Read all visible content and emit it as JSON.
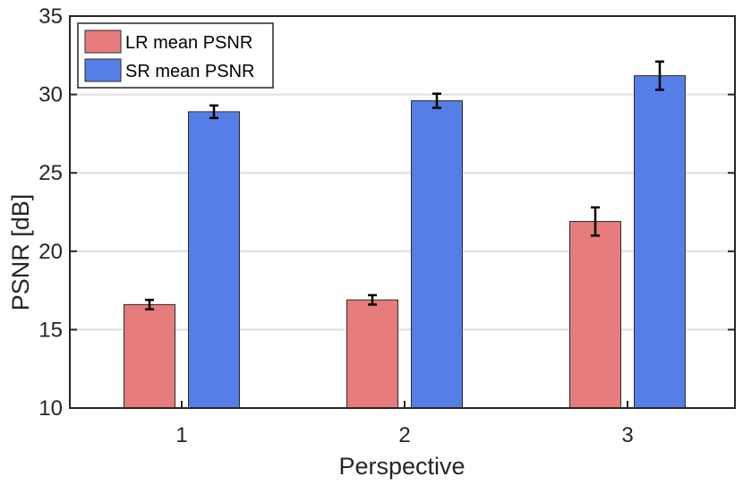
{
  "chart_data": {
    "type": "bar",
    "title": "",
    "xlabel": "Perspective",
    "ylabel": "PSNR [dB]",
    "categories": [
      "1",
      "2",
      "3"
    ],
    "ylim": [
      10,
      35
    ],
    "yticks": [
      10,
      15,
      20,
      25,
      30,
      35
    ],
    "ytick_labels": [
      "10",
      "15",
      "20",
      "25",
      "30",
      "35"
    ],
    "grid": true,
    "legend_position": "top-left",
    "series": [
      {
        "name": "LR mean PSNR",
        "color": "#e67c7c",
        "values": [
          16.6,
          16.9,
          21.9
        ],
        "errors": [
          0.3,
          0.3,
          0.9
        ]
      },
      {
        "name": "SR mean PSNR",
        "color": "#557ee6",
        "values": [
          28.9,
          29.6,
          31.2
        ],
        "errors": [
          0.4,
          0.45,
          0.9
        ]
      }
    ]
  }
}
